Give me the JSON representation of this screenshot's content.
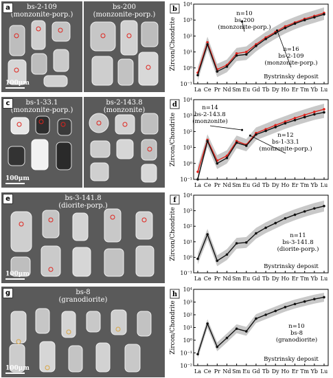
{
  "figure": {
    "panels": [
      {
        "letter": "a",
        "samples": [
          {
            "line1": "bs-2-109",
            "line2": "(monzonite-porp.)"
          },
          {
            "line1": "bs-200",
            "line2": "(monzonite-porp.)"
          }
        ],
        "scale": "100μm"
      },
      {
        "letter": "c",
        "samples": [
          {
            "line1": "bs-1-33.1",
            "line2": "(monzonite-porp.)"
          },
          {
            "line1": "bs-2-143.8",
            "line2": "(monzonite)"
          }
        ],
        "scale": "100μm"
      },
      {
        "letter": "e",
        "samples": [
          {
            "line1": "bs-3-141.8",
            "line2": "(diorite-porp.)"
          }
        ],
        "scale": "100μm"
      },
      {
        "letter": "g",
        "samples": [
          {
            "line1": "bs-8",
            "line2": "(granodiorite)"
          }
        ],
        "scale": "100μm"
      }
    ]
  },
  "chart_data": [
    {
      "type": "line",
      "panel": "b",
      "xlabel": "",
      "ylabel": "Zircon/Chondrite",
      "categories": [
        "La",
        "Ce",
        "Pr",
        "Nd",
        "Sm",
        "Eu",
        "Gd",
        "Tb",
        "Dy",
        "Ho",
        "Er",
        "Tm",
        "Yb",
        "Lu"
      ],
      "y_scale": "log",
      "ylim": [
        0.1,
        10000
      ],
      "y_ticks": [
        "10⁻¹",
        "10⁰",
        "10¹",
        "10²",
        "10³",
        "10⁴"
      ],
      "series": [
        {
          "name": "n=10 bs-200 (monzonite-porp.)",
          "color": "#e0231c",
          "values": [
            0.5,
            40,
            0.8,
            1.5,
            8,
            10,
            30,
            80,
            180,
            400,
            700,
            1200,
            1800,
            2800
          ]
        },
        {
          "name": "n=16 bs-2-109 (monzonite-porp.)",
          "color": "#111111",
          "values": [
            0.35,
            30,
            0.6,
            1.2,
            6,
            7,
            24,
            65,
            150,
            320,
            600,
            1000,
            1500,
            2300
          ]
        }
      ],
      "annotations": [
        {
          "text_lines": [
            "n=10",
            "bs-200",
            "(monzonite-porp.)"
          ]
        },
        {
          "text_lines": [
            "n=16",
            "bs-2-109",
            "(monzonite-porp.)"
          ]
        },
        {
          "text_lines": [
            "Bystrinsky deposit"
          ]
        }
      ]
    },
    {
      "type": "line",
      "panel": "d",
      "xlabel": "",
      "ylabel": "Zircon/Chondrite",
      "categories": [
        "La",
        "Ce",
        "Pr",
        "Nd",
        "Sm",
        "Eu",
        "Gd",
        "Tb",
        "Dy",
        "Ho",
        "Er",
        "Tm",
        "Yb",
        "Lu"
      ],
      "y_scale": "log",
      "ylim": [
        0.1,
        10000
      ],
      "y_ticks": [
        "10⁻¹",
        "10⁰",
        "10¹",
        "10²",
        "10³",
        "10⁴"
      ],
      "series": [
        {
          "name": "n=14 bs-2-143.8 (monzonite)",
          "color": "#e0231c",
          "values": [
            0.3,
            30,
            1.5,
            3,
            25,
            15,
            80,
            140,
            250,
            420,
            700,
            1100,
            1700,
            2500
          ]
        },
        {
          "name": "n=12 bs-1-33.1 (monzonite-porp.)",
          "color": "#111111",
          "values": [
            0.1,
            25,
            1.0,
            2.2,
            20,
            13,
            65,
            110,
            190,
            330,
            520,
            800,
            1200,
            1600
          ]
        }
      ],
      "annotations": [
        {
          "text_lines": [
            "n=14",
            "bs-2-143.8",
            "(monzonite)"
          ]
        },
        {
          "text_lines": [
            "n=12",
            "bs-1-33.1",
            "(monzonite-porp.)"
          ]
        }
      ]
    },
    {
      "type": "line",
      "panel": "f",
      "xlabel": "",
      "ylabel": "Zircon/Chondrite",
      "categories": [
        "La",
        "Ce",
        "Pr",
        "Nd",
        "Sm",
        "Eu",
        "Gd",
        "Tb",
        "Dy",
        "Ho",
        "Er",
        "Tm",
        "Yb",
        "Lu"
      ],
      "y_scale": "log",
      "ylim": [
        0.1,
        10000
      ],
      "y_ticks": [
        "10⁻¹",
        "10⁰",
        "10¹",
        "10²",
        "10³",
        "10⁴"
      ],
      "series": [
        {
          "name": "n=11 bs-3-141.8 (diorite-porp.)",
          "color": "#111111",
          "values": [
            0.8,
            30,
            0.6,
            1.5,
            8,
            9,
            35,
            80,
            160,
            320,
            550,
            900,
            1400,
            2000
          ]
        }
      ],
      "annotations": [
        {
          "text_lines": [
            "n=11",
            "bs-3-141.8",
            "(diorite-porp.)"
          ]
        },
        {
          "text_lines": [
            "Bystrinsky deposit"
          ]
        }
      ]
    },
    {
      "type": "line",
      "panel": "h",
      "xlabel": "",
      "ylabel": "Zircon/Chondrite",
      "categories": [
        "La",
        "Ce",
        "Pr",
        "Nd",
        "Sm",
        "Eu",
        "Gd",
        "Tb",
        "Dy",
        "Ho",
        "Er",
        "Tm",
        "Yb",
        "Lu"
      ],
      "y_scale": "log",
      "ylim": [
        0.01,
        10000
      ],
      "y_ticks": [
        "10⁻²",
        "10⁻¹",
        "10⁰",
        "10¹",
        "10²",
        "10³",
        "10⁴"
      ],
      "series": [
        {
          "name": "n=10 bs-8 (granodiorite)",
          "color": "#111111",
          "values": [
            0.08,
            20,
            0.3,
            1.5,
            8,
            5,
            50,
            100,
            200,
            400,
            700,
            1100,
            1700,
            2400
          ]
        }
      ],
      "annotations": [
        {
          "text_lines": [
            "n=10",
            "bs-8",
            "(granodiorite)"
          ]
        },
        {
          "text_lines": [
            "Bystrinsky deposit"
          ]
        }
      ]
    }
  ]
}
